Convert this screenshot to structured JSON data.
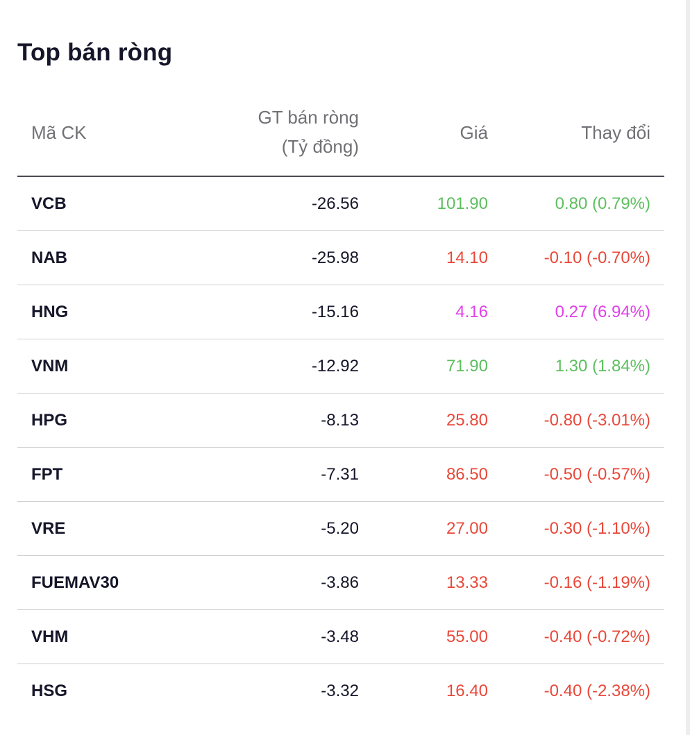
{
  "title": "Top bán ròng",
  "columns": {
    "symbol": "Mã CK",
    "net_value_line1": "GT bán ròng",
    "net_value_line2": "(Tỷ đồng)",
    "price": "Giá",
    "change": "Thay đổi"
  },
  "colors": {
    "up": "#5cbf5e",
    "down": "#e8483a",
    "ceiling": "#e040e8"
  },
  "rows": [
    {
      "symbol": "VCB",
      "net_value": "-26.56",
      "price": "101.90",
      "change": "0.80 (0.79%)",
      "status": "up"
    },
    {
      "symbol": "NAB",
      "net_value": "-25.98",
      "price": "14.10",
      "change": "-0.10 (-0.70%)",
      "status": "down"
    },
    {
      "symbol": "HNG",
      "net_value": "-15.16",
      "price": "4.16",
      "change": "0.27 (6.94%)",
      "status": "ceil"
    },
    {
      "symbol": "VNM",
      "net_value": "-12.92",
      "price": "71.90",
      "change": "1.30 (1.84%)",
      "status": "up"
    },
    {
      "symbol": "HPG",
      "net_value": "-8.13",
      "price": "25.80",
      "change": "-0.80 (-3.01%)",
      "status": "down"
    },
    {
      "symbol": "FPT",
      "net_value": "-7.31",
      "price": "86.50",
      "change": "-0.50 (-0.57%)",
      "status": "down"
    },
    {
      "symbol": "VRE",
      "net_value": "-5.20",
      "price": "27.00",
      "change": "-0.30 (-1.10%)",
      "status": "down"
    },
    {
      "symbol": "FUEMAV30",
      "net_value": "-3.86",
      "price": "13.33",
      "change": "-0.16 (-1.19%)",
      "status": "down"
    },
    {
      "symbol": "VHM",
      "net_value": "-3.48",
      "price": "55.00",
      "change": "-0.40 (-0.72%)",
      "status": "down"
    },
    {
      "symbol": "HSG",
      "net_value": "-3.32",
      "price": "16.40",
      "change": "-0.40 (-2.38%)",
      "status": "down"
    }
  ]
}
